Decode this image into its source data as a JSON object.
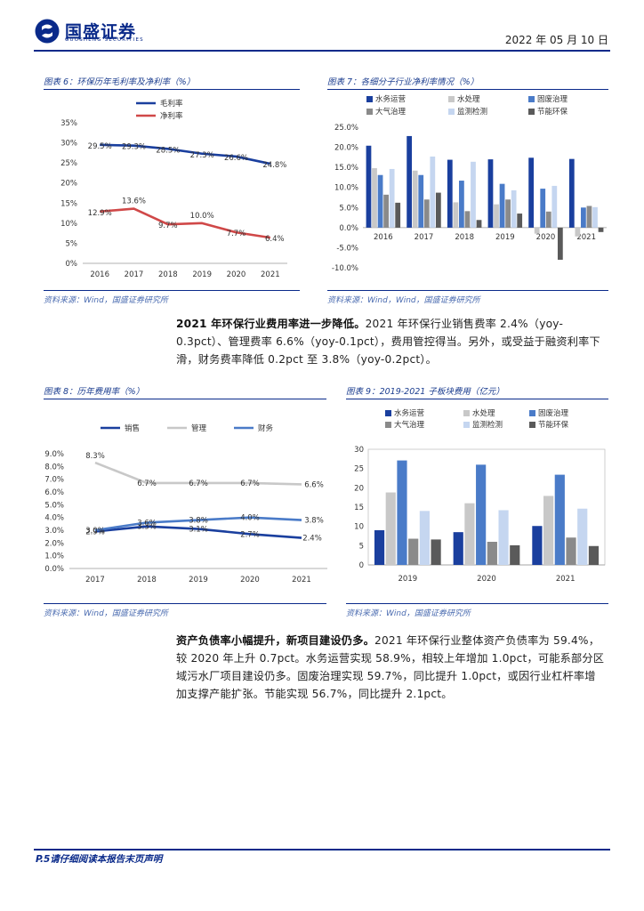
{
  "header": {
    "company_name": "国盛证券",
    "company_name_en": "GUOSHENG SECURITIES",
    "date": "2022 年 05 月 10 日"
  },
  "colors": {
    "brand": "#0a2a8a",
    "series_dark_blue": "#1a3f9e",
    "series_light_gray": "#c8c8c8",
    "series_mid_blue": "#4a7bc8",
    "series_gray": "#8a8a8a",
    "series_pale_blue": "#c5d6f0",
    "series_dark_gray": "#5a5a5a",
    "gross_margin": "#1a3f9e",
    "net_margin": "#d04848"
  },
  "figures": {
    "fig6": {
      "title": "图表 6：环保历年毛利率及净利率（%）",
      "source": "资料来源：Wind，国盛证券研究所"
    },
    "fig7": {
      "title": "图表 7：各细分子行业净利率情况（%）",
      "source": "资料来源：Wind，Wind，国盛证券研究所"
    },
    "fig8": {
      "title": "图表 8：历年费用率（%）",
      "source": "资料来源：Wind，国盛证券研究所"
    },
    "fig9": {
      "title": "图表 9：2019-2021 子板块费用（亿元）",
      "source": "资料来源：Wind，国盛证券研究所"
    }
  },
  "paragraphs": {
    "p1_bold": "2021 年环保行业费用率进一步降低。",
    "p1_text": "2021 年环保行业销售费率 2.4%（yoy-0.3pct）、管理费率 6.6%（yoy-0.1pct），费用管控得当。另外，或受益于融资利率下滑，财务费率降低 0.2pct 至 3.8%（yoy-0.2pct）。",
    "p2_bold": "资产负债率小幅提升，新项目建设仍多。",
    "p2_text": "2021 年环保行业整体资产负债率为 59.4%，较 2020 年上升 0.7pct。水务运营实现 58.9%，相较上年增加 1.0pct，可能系部分区域污水厂项目建设仍多。固废治理实现 59.7%，同比提升 1.0pct，或因行业杠杆率增加支撑产能扩张。节能实现 56.7%，同比提升 2.1pct。"
  },
  "footer": {
    "text": "P.5请仔细阅读本报告末页声明"
  },
  "chart_data": [
    {
      "id": "fig6",
      "type": "line",
      "categories": [
        "2016",
        "2017",
        "2018",
        "2019",
        "2020",
        "2021"
      ],
      "series": [
        {
          "name": "毛利率",
          "values": [
            29.5,
            29.3,
            28.5,
            27.3,
            26.6,
            24.8
          ],
          "labels": [
            "29.5%",
            "29.3%",
            "28.5%",
            "27.3%",
            "26.6%",
            "24.8%"
          ]
        },
        {
          "name": "净利率",
          "values": [
            12.9,
            13.6,
            9.7,
            10.0,
            7.7,
            6.4
          ],
          "labels": [
            "12.9%",
            "13.6%",
            "9.7%",
            "10.0%",
            "7.7%",
            "6.4%"
          ]
        }
      ],
      "ylim": [
        0,
        35
      ],
      "yticks": [
        "0%",
        "5%",
        "10%",
        "15%",
        "20%",
        "25%",
        "30%",
        "35%"
      ],
      "legend_position": "top"
    },
    {
      "id": "fig7",
      "type": "bar",
      "categories": [
        "2016",
        "2017",
        "2018",
        "2019",
        "2020",
        "2021"
      ],
      "series": [
        {
          "name": "水务运营",
          "values": [
            20.4,
            22.8,
            16.9,
            17.0,
            17.4,
            17.1
          ]
        },
        {
          "name": "水处理",
          "values": [
            14.8,
            14.2,
            6.3,
            5.8,
            -1.5,
            -2.2
          ]
        },
        {
          "name": "固废治理",
          "values": [
            13.1,
            13.1,
            11.7,
            10.9,
            9.7,
            5.0
          ]
        },
        {
          "name": "大气治理",
          "values": [
            8.2,
            7.0,
            4.1,
            7.0,
            4.0,
            5.4
          ]
        },
        {
          "name": "监测检测",
          "values": [
            14.6,
            17.7,
            16.4,
            9.3,
            10.4,
            5.1
          ]
        },
        {
          "name": "节能环保",
          "values": [
            6.2,
            8.7,
            1.9,
            3.5,
            -8.0,
            -1.1
          ]
        }
      ],
      "ylim": [
        -10,
        25
      ],
      "yticks": [
        "-10.0%",
        "-5.0%",
        "0.0%",
        "5.0%",
        "10.0%",
        "15.0%",
        "20.0%",
        "25.0%"
      ],
      "legend_position": "top"
    },
    {
      "id": "fig8",
      "type": "line",
      "categories": [
        "2017",
        "2018",
        "2019",
        "2020",
        "2021"
      ],
      "series": [
        {
          "name": "销售",
          "values": [
            2.9,
            3.3,
            3.1,
            2.7,
            2.4
          ],
          "labels": [
            "2.9%",
            "3.3%",
            "3.1%",
            "2.7%",
            "2.4%"
          ]
        },
        {
          "name": "管理",
          "values": [
            8.3,
            6.7,
            6.7,
            6.7,
            6.6
          ],
          "labels": [
            "8.3%",
            "6.7%",
            "6.7%",
            "6.7%",
            "6.6%"
          ]
        },
        {
          "name": "财务",
          "values": [
            3.0,
            3.6,
            3.8,
            4.0,
            3.8
          ],
          "labels": [
            "3.0%",
            "3.6%",
            "3.8%",
            "4.0%",
            "3.8%"
          ]
        }
      ],
      "ylim": [
        0,
        9
      ],
      "yticks": [
        "0.0%",
        "1.0%",
        "2.0%",
        "3.0%",
        "4.0%",
        "5.0%",
        "6.0%",
        "7.0%",
        "8.0%",
        "9.0%"
      ],
      "legend_position": "top"
    },
    {
      "id": "fig9",
      "type": "bar",
      "categories": [
        "2019",
        "2020",
        "2021"
      ],
      "series": [
        {
          "name": "水务运营",
          "values": [
            9.0,
            8.5,
            10.1
          ]
        },
        {
          "name": "水处理",
          "values": [
            18.8,
            16.0,
            17.9
          ]
        },
        {
          "name": "固废治理",
          "values": [
            27.1,
            26.0,
            23.4
          ]
        },
        {
          "name": "大气治理",
          "values": [
            6.8,
            6.0,
            7.1
          ]
        },
        {
          "name": "监测检测",
          "values": [
            14.0,
            14.2,
            14.6
          ]
        },
        {
          "name": "节能环保",
          "values": [
            6.6,
            5.1,
            4.9
          ]
        }
      ],
      "ylim": [
        0,
        30
      ],
      "yticks": [
        "0",
        "5",
        "10",
        "15",
        "20",
        "25",
        "30"
      ],
      "legend_position": "top"
    }
  ]
}
